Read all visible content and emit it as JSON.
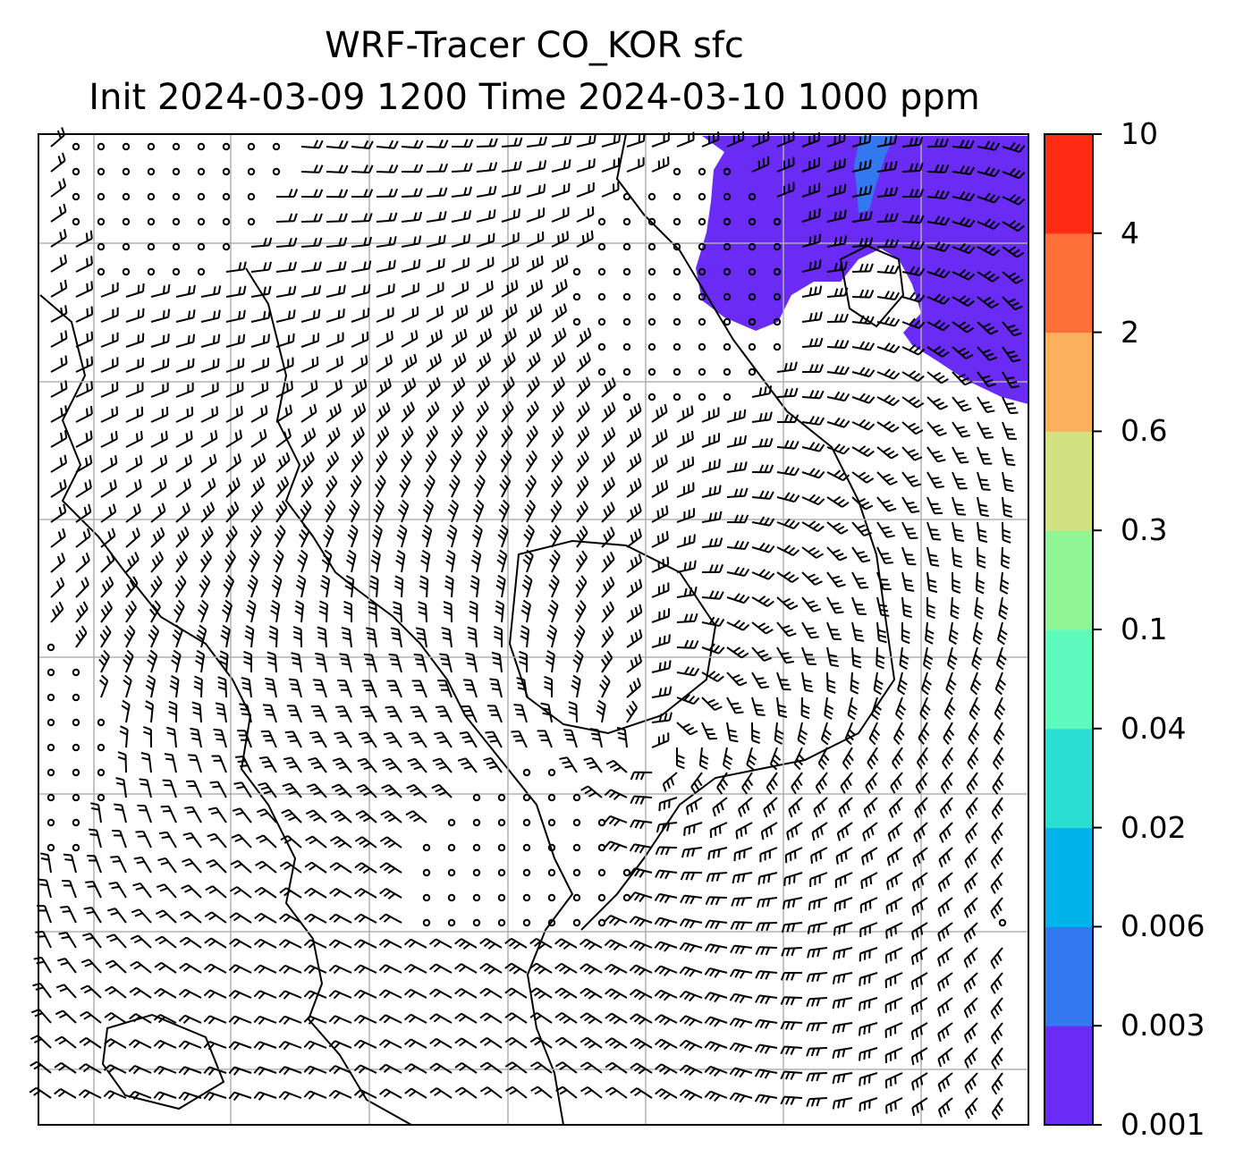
{
  "title": {
    "line1": "WRF-Tracer CO_KOR sfc",
    "line2": "Init 2024-03-09 1200 Time 2024-03-10 1000 ppm"
  },
  "colorbar": {
    "levels": [
      "0.001",
      "0.003",
      "0.006",
      "0.02",
      "0.04",
      "0.1",
      "0.3",
      "0.6",
      "2",
      "4",
      "10"
    ],
    "colors": [
      "#6a2cf5",
      "#3478f0",
      "#00b4ea",
      "#2adfd2",
      "#5ffbbd",
      "#91f593",
      "#d2e182",
      "#fbb05e",
      "#ff7138",
      "#ff2b15"
    ]
  },
  "map": {
    "gridlines": true,
    "tracer_color": "#6a2cf5",
    "tracer_high_color": "#3478f0",
    "coastline_color": "#000000",
    "barb_color": "#000000"
  }
}
